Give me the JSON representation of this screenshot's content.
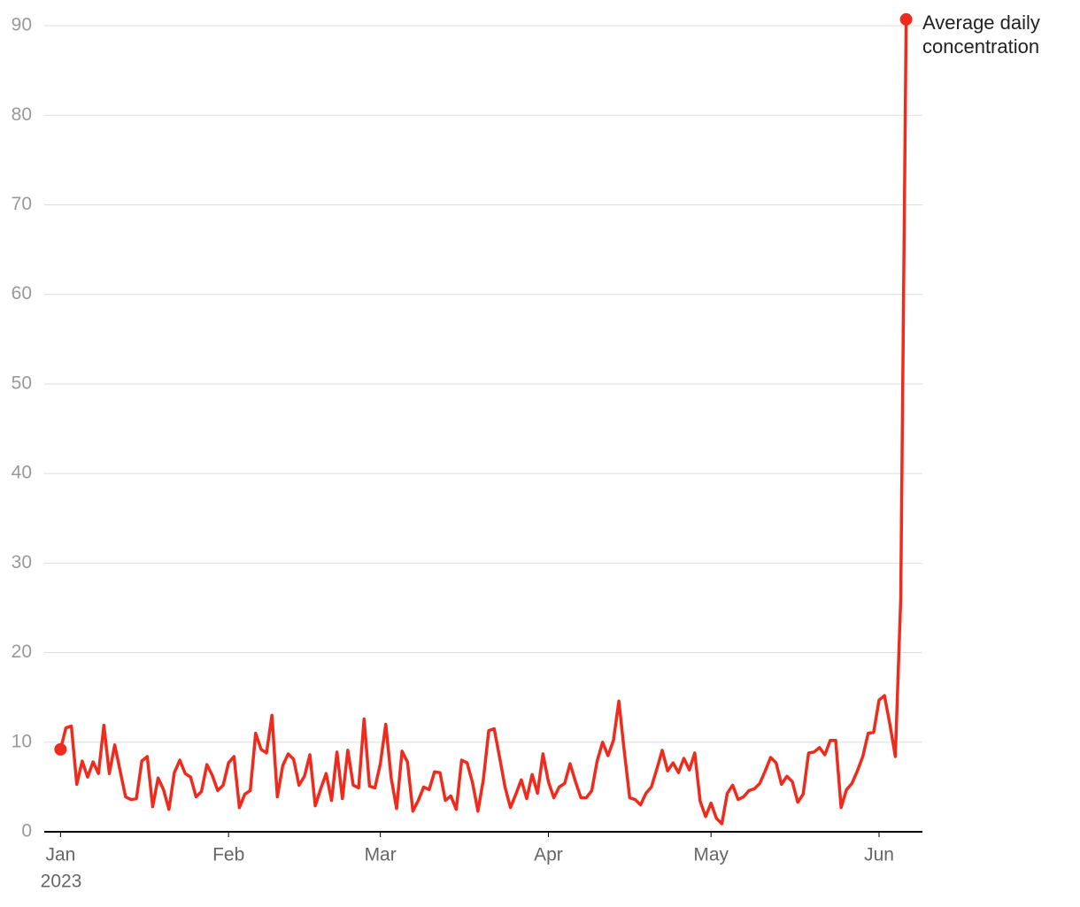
{
  "chart_data": {
    "type": "line",
    "x": [
      0,
      1,
      2,
      3,
      4,
      5,
      6,
      7,
      8,
      9,
      10,
      11,
      12,
      13,
      14,
      15,
      16,
      17,
      18,
      19,
      20,
      21,
      22,
      23,
      24,
      25,
      26,
      27,
      28,
      29,
      30,
      31,
      32,
      33,
      34,
      35,
      36,
      37,
      38,
      39,
      40,
      41,
      42,
      43,
      44,
      45,
      46,
      47,
      48,
      49,
      50,
      51,
      52,
      53,
      54,
      55,
      56,
      57,
      58,
      59,
      60,
      61,
      62,
      63,
      64,
      65,
      66,
      67,
      68,
      69,
      70,
      71,
      72,
      73,
      74,
      75,
      76,
      77,
      78,
      79,
      80,
      81,
      82,
      83,
      84,
      85,
      86,
      87,
      88,
      89,
      90,
      91,
      92,
      93,
      94,
      95,
      96,
      97,
      98,
      99,
      100,
      101,
      102,
      103,
      104,
      105,
      106,
      107,
      108,
      109,
      110,
      111,
      112,
      113,
      114,
      115,
      116,
      117,
      118,
      119,
      120,
      121,
      122,
      123,
      124,
      125,
      126,
      127,
      128,
      129,
      130,
      131,
      132,
      133,
      134,
      135,
      136,
      137,
      138,
      139,
      140,
      141,
      142,
      143,
      144,
      145,
      146,
      147,
      148,
      149,
      150,
      151,
      152,
      153,
      154,
      155,
      156
    ],
    "series": [
      {
        "name": "Average daily concentration",
        "color": "#ef2b1d",
        "values": [
          9.2,
          11.6,
          11.8,
          5.3,
          7.9,
          6.1,
          7.8,
          6.5,
          11.9,
          6.5,
          9.7,
          6.8,
          3.9,
          3.6,
          3.7,
          7.9,
          8.4,
          2.8,
          6.0,
          4.7,
          2.5,
          6.6,
          8.0,
          6.5,
          6.1,
          3.9,
          4.5,
          7.5,
          6.3,
          4.6,
          5.2,
          7.7,
          8.4,
          2.7,
          4.2,
          4.6,
          11.0,
          9.2,
          8.8,
          13.0,
          3.9,
          7.4,
          8.7,
          8.1,
          5.2,
          6.2,
          8.6,
          2.9,
          4.8,
          6.5,
          3.5,
          8.9,
          3.7,
          9.1,
          5.2,
          4.9,
          12.6,
          5.1,
          4.9,
          7.6,
          12.0,
          6.0,
          2.6,
          9.0,
          7.8,
          2.3,
          3.5,
          5.0,
          4.7,
          6.7,
          6.6,
          3.5,
          4.0,
          2.5,
          8.0,
          7.7,
          5.5,
          2.3,
          5.8,
          11.3,
          11.5,
          8.3,
          5.0,
          2.7,
          4.2,
          5.8,
          3.7,
          6.4,
          4.3,
          8.7,
          5.6,
          3.8,
          5.0,
          5.4,
          7.6,
          5.6,
          3.8,
          3.8,
          4.6,
          7.9,
          10.0,
          8.5,
          10.2,
          14.6,
          9.0,
          3.8,
          3.6,
          3.0,
          4.3,
          5.0,
          7.0,
          9.1,
          6.8,
          7.7,
          6.6,
          8.2,
          6.9,
          8.8,
          3.4,
          1.7,
          3.2,
          1.5,
          0.9,
          4.3,
          5.2,
          3.6,
          3.9,
          4.6,
          4.8,
          5.4,
          6.8,
          8.3,
          7.7,
          5.3,
          6.2,
          5.6,
          3.3,
          4.2,
          8.8,
          8.9,
          9.4,
          8.6,
          10.2,
          10.2,
          2.7,
          4.7,
          5.4,
          6.8,
          8.4,
          11.0,
          11.1,
          14.7,
          15.2,
          12.0,
          8.4,
          26.0,
          90.7
        ]
      }
    ],
    "xlim": [
      -3,
      159
    ],
    "xticks": [
      {
        "value": 0,
        "label": "Jan"
      },
      {
        "value": 31,
        "label": "Feb"
      },
      {
        "value": 59,
        "label": "Mar"
      },
      {
        "value": 90,
        "label": "Apr"
      },
      {
        "value": 120,
        "label": "May"
      },
      {
        "value": 151,
        "label": "Jun"
      }
    ],
    "x_year_label": "2023",
    "ylim": [
      0,
      90
    ],
    "yticks": [
      0,
      10,
      20,
      30,
      40,
      50,
      60,
      70,
      80,
      90
    ],
    "grid": true
  }
}
